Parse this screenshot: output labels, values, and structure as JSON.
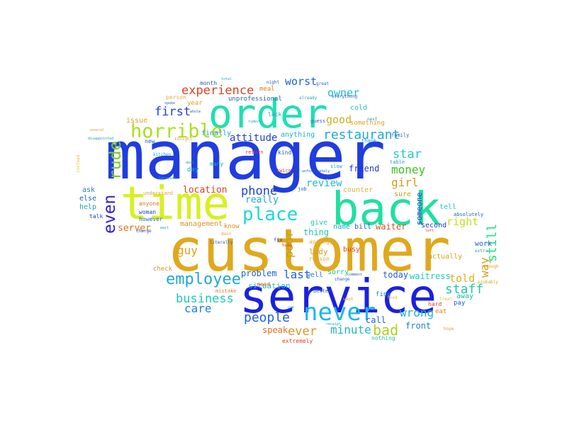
{
  "palette": {
    "background": "#ffffff",
    "blue": "#1f3de0",
    "gold": "#e0a81c",
    "teal": "#1fe0a8",
    "yellow": "#d7f020",
    "lime": "#a8e01f",
    "sky": "#1fb0e0",
    "red": "#e0401f",
    "indigo": "#3a2fe0",
    "orange": "#e0801f",
    "green": "#20c870"
  },
  "words": [
    {
      "text": "manager",
      "color": "#1f3de0"
    },
    {
      "text": "customer",
      "color": "#e0a81c"
    },
    {
      "text": "service",
      "color": "#1a20e0"
    },
    {
      "text": "back",
      "color": "#1fe0a0"
    },
    {
      "text": "time",
      "color": "#d7f020"
    },
    {
      "text": "order",
      "color": "#1fe0b0"
    },
    {
      "text": "never",
      "color": "#1fb8e8"
    },
    {
      "text": "horrible",
      "color": "#a8e020"
    },
    {
      "text": "rude",
      "color": "#7ad020"
    },
    {
      "text": "even",
      "color": "#3020d8"
    },
    {
      "text": "place",
      "color": "#1fd8d8"
    },
    {
      "text": "employee",
      "color": "#20a8d8"
    },
    {
      "text": "restaurant",
      "color": "#20a8d8"
    },
    {
      "text": "experience",
      "color": "#e0401f"
    },
    {
      "text": "first",
      "color": "#2040d8"
    },
    {
      "text": "phone",
      "color": "#2040d8"
    },
    {
      "text": "business",
      "color": "#20c8b8"
    },
    {
      "text": "people",
      "color": "#2060e0"
    },
    {
      "text": "bad",
      "color": "#b0d020"
    },
    {
      "text": "ever",
      "color": "#e09020"
    },
    {
      "text": "minute",
      "color": "#20b8c8"
    },
    {
      "text": "staff",
      "color": "#20c8a8"
    },
    {
      "text": "still",
      "color": "#20e080"
    },
    {
      "text": "way",
      "color": "#d0a020"
    },
    {
      "text": "told",
      "color": "#e0b020"
    },
    {
      "text": "wrong",
      "color": "#20b0d0"
    },
    {
      "text": "care",
      "color": "#2080d8"
    },
    {
      "text": "guy",
      "color": "#e0a020"
    },
    {
      "text": "poor",
      "color": "#c0a020"
    },
    {
      "text": "last",
      "color": "#2060e0"
    },
    {
      "text": "money",
      "color": "#40c020"
    },
    {
      "text": "girl",
      "color": "#d0a020"
    },
    {
      "text": "star",
      "color": "#20c8c8"
    },
    {
      "text": "owner",
      "color": "#20b8d8"
    },
    {
      "text": "worst",
      "color": "#2060d8"
    },
    {
      "text": "good",
      "color": "#d0b020"
    },
    {
      "text": "attitude",
      "color": "#2040d8"
    },
    {
      "text": "review",
      "color": "#20b8c8"
    },
    {
      "text": "location",
      "color": "#e04020"
    },
    {
      "text": "server",
      "color": "#e07020"
    },
    {
      "text": "really",
      "color": "#20a8d8"
    },
    {
      "text": "right",
      "color": "#c0e020"
    },
    {
      "text": "waiter",
      "color": "#e05020"
    },
    {
      "text": "waitress",
      "color": "#20c8c8"
    },
    {
      "text": "today",
      "color": "#2060e0"
    },
    {
      "text": "front",
      "color": "#2080d8"
    },
    {
      "text": "speak",
      "color": "#e07020"
    },
    {
      "text": "call",
      "color": "#2060d8"
    },
    {
      "text": "friend",
      "color": "#2040c8"
    },
    {
      "text": "thing",
      "color": "#20c8a0"
    },
    {
      "text": "problem",
      "color": "#2060d8"
    },
    {
      "text": "someone",
      "color": "#2040c8"
    },
    {
      "text": "lady",
      "color": "#d0a020"
    },
    {
      "text": "situation",
      "color": "#20b8d8"
    },
    {
      "text": "management",
      "color": "#e09020"
    },
    {
      "text": "issue",
      "color": "#e0a020"
    },
    {
      "text": "cold",
      "color": "#20c8a0"
    },
    {
      "text": "anything",
      "color": "#20b0d0"
    },
    {
      "text": "finally",
      "color": "#20a0d0"
    },
    {
      "text": "bill",
      "color": "#2060c8"
    },
    {
      "text": "sure",
      "color": "#c0a020"
    },
    {
      "text": "tell",
      "color": "#20c8c0"
    },
    {
      "text": "counter",
      "color": "#e0b040"
    },
    {
      "text": "actually",
      "color": "#e0a020"
    },
    {
      "text": "sorry",
      "color": "#20c880"
    },
    {
      "text": "well",
      "color": "#2080d0"
    },
    {
      "text": "name",
      "color": "#20a8c8"
    },
    {
      "text": "give",
      "color": "#20c8a8"
    },
    {
      "text": "busy",
      "color": "#e04020"
    },
    {
      "text": "second",
      "color": "#2040c8"
    },
    {
      "text": "work",
      "color": "#2060c8"
    },
    {
      "text": "away",
      "color": "#20b8a0"
    },
    {
      "text": "know",
      "color": "#e09020"
    },
    {
      "text": "day",
      "color": "#20a0c8"
    },
    {
      "text": "ask",
      "color": "#2080c8"
    },
    {
      "text": "else",
      "color": "#2060c8"
    },
    {
      "text": "help",
      "color": "#20a8a0"
    },
    {
      "text": "check",
      "color": "#e09020"
    },
    {
      "text": "year",
      "color": "#e0a020"
    },
    {
      "text": "meal",
      "color": "#e08020"
    },
    {
      "text": "need",
      "color": "#e06020"
    },
    {
      "text": "unprofessional",
      "color": "#2060c8"
    },
    {
      "text": "something",
      "color": "#e0a020"
    },
    {
      "text": "hard",
      "color": "#e04020"
    },
    {
      "text": "fine",
      "color": "#2080c8"
    },
    {
      "text": "pay",
      "color": "#2060c8"
    },
    {
      "text": "eat",
      "color": "#e08020"
    },
    {
      "text": "nothing",
      "color": "#20c8a0"
    },
    {
      "text": "extremely",
      "color": "#e04020"
    },
    {
      "text": "apology",
      "color": "#e0b040"
    },
    {
      "text": "reason",
      "color": "#e0a040"
    },
    {
      "text": "many",
      "color": "#20a0c8"
    },
    {
      "text": "anyone",
      "color": "#e07020"
    },
    {
      "text": "however",
      "color": "#2060c8"
    },
    {
      "text": "talk",
      "color": "#2040c8"
    },
    {
      "text": "woman",
      "color": "#2040c8"
    },
    {
      "text": "person",
      "color": "#e0b040"
    },
    {
      "text": "lack",
      "color": "#20a0c8"
    },
    {
      "text": "kind",
      "color": "#2060c8"
    },
    {
      "text": "month",
      "color": "#2060c8"
    },
    {
      "text": "new",
      "color": "#2060c8"
    },
    {
      "text": "understand",
      "color": "#e0a040"
    },
    {
      "text": "absolutely",
      "color": "#2060c8"
    },
    {
      "text": "mistake",
      "color": "#e08020"
    },
    {
      "text": "job",
      "color": "#2060c8"
    },
    {
      "text": "fix",
      "color": "#2040c8"
    },
    {
      "text": "hung",
      "color": "#e04020"
    },
    {
      "text": "better",
      "color": "#2060c8"
    },
    {
      "text": "family",
      "color": "#2060c8"
    },
    {
      "text": "table",
      "color": "#20a0c8"
    },
    {
      "text": "twice",
      "color": "#e04020"
    },
    {
      "text": "slow",
      "color": "#20a0c8"
    },
    {
      "text": "return",
      "color": "#e04020"
    },
    {
      "text": "guess",
      "color": "#2060c8"
    },
    {
      "text": "kitchen",
      "color": "#20a0c8"
    },
    {
      "text": "instead",
      "color": "#e0c040"
    },
    {
      "text": "unfortunately",
      "color": "#2060c8"
    },
    {
      "text": "thank",
      "color": "#20a0c8"
    },
    {
      "text": "charge",
      "color": "#2060c8"
    },
    {
      "text": "wait",
      "color": "#20a0c8"
    },
    {
      "text": "door",
      "color": "#e0a020"
    },
    {
      "text": "cup",
      "color": "#20a0c8"
    },
    {
      "text": "probably",
      "color": "#e0a020"
    },
    {
      "text": "enough",
      "color": "#e0a020"
    },
    {
      "text": "extra",
      "color": "#20a0c8"
    },
    {
      "text": "left",
      "color": "#e04020"
    },
    {
      "text": "treat",
      "color": "#e0c040"
    },
    {
      "text": "want",
      "color": "#e0a020"
    },
    {
      "text": "disappointed",
      "color": "#20a0c8"
    },
    {
      "text": "literally",
      "color": "#2060c8"
    },
    {
      "text": "change",
      "color": "#2060c8"
    },
    {
      "text": "tonight",
      "color": "#e0a040"
    },
    {
      "text": "whole",
      "color": "#2060c8"
    },
    {
      "text": "great",
      "color": "#2060c8"
    },
    {
      "text": "spoke",
      "color": "#2060c8"
    },
    {
      "text": "come",
      "color": "#2060c8"
    },
    {
      "text": "next",
      "color": "#20a0c8"
    },
    {
      "text": "comment",
      "color": "#2060c8"
    },
    {
      "text": "receipt",
      "color": "#20a0c8"
    },
    {
      "text": "behavior",
      "color": "#20a0c8"
    },
    {
      "text": "hope",
      "color": "#e0a040"
    },
    {
      "text": "everything",
      "color": "#2060c8"
    },
    {
      "text": "already",
      "color": "#20a0c8"
    },
    {
      "text": "several",
      "color": "#e0a040"
    },
    {
      "text": "food",
      "color": "#e0c040"
    },
    {
      "text": "deal",
      "color": "#20a0c8"
    },
    {
      "text": "total",
      "color": "#20a0c8"
    },
    {
      "text": "night",
      "color": "#2060c8"
    },
    {
      "text": "rudest",
      "color": "#20a0c8"
    }
  ]
}
